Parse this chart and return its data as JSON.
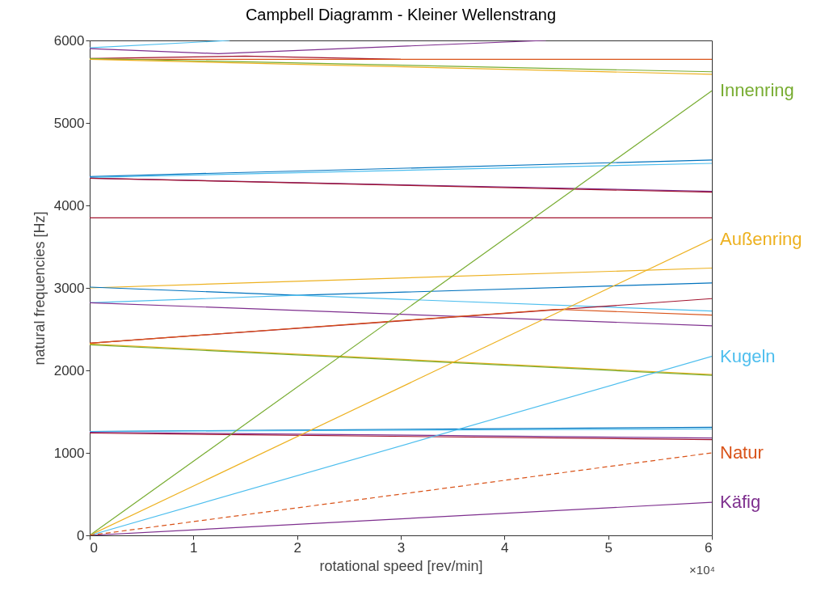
{
  "chart_data": {
    "type": "line",
    "title": "Campbell Diagramm - Kleiner Wellenstrang",
    "xlabel": "rotational speed [rev/min]",
    "ylabel": "natural frequencies [Hz]",
    "line_style": "solid",
    "xlim": [
      0,
      6
    ],
    "ylim": [
      0,
      6000
    ],
    "xticks": [
      0,
      1,
      2,
      3,
      4,
      5,
      6
    ],
    "yticks": [
      0,
      1000,
      2000,
      3000,
      4000,
      5000,
      6000
    ],
    "annotations": [
      "×10⁴"
    ],
    "series": [
      {
        "color": "#4dbeee",
        "x": [
          0,
          1.35
        ],
        "values": [
          5910,
          6000
        ]
      },
      {
        "color": "#7e2f8e",
        "x": [
          0,
          1.24,
          4.4
        ],
        "values": [
          5900,
          5840,
          6000
        ]
      },
      {
        "color": "#a2142f",
        "x": [
          0,
          1.5,
          3
        ],
        "values": [
          5780,
          5810,
          5770
        ]
      },
      {
        "color": "#d95319",
        "x": [
          0,
          6
        ],
        "values": [
          5770,
          5770
        ]
      },
      {
        "color": "#77ac30",
        "x": [
          0,
          6
        ],
        "values": [
          5780,
          5620
        ]
      },
      {
        "color": "#edb120",
        "x": [
          0,
          6
        ],
        "values": [
          5770,
          5590
        ]
      },
      {
        "color": "#0072bd",
        "x": [
          0,
          6
        ],
        "values": [
          4350,
          4550
        ]
      },
      {
        "color": "#4dbeee",
        "x": [
          0,
          6
        ],
        "values": [
          4340,
          4510
        ]
      },
      {
        "color": "#7e2f8e",
        "x": [
          0,
          6
        ],
        "values": [
          4330,
          4170
        ]
      },
      {
        "color": "#a2142f",
        "x": [
          0,
          6
        ],
        "values": [
          4330,
          4160
        ]
      },
      {
        "color": "#a2142f",
        "x": [
          0,
          6
        ],
        "values": [
          3850,
          3850
        ]
      },
      {
        "color": "#edb120",
        "x": [
          0,
          6
        ],
        "values": [
          3000,
          3240
        ]
      },
      {
        "color": "#0072bd",
        "x": [
          0,
          2,
          6
        ],
        "values": [
          3010,
          2910,
          3060
        ]
      },
      {
        "color": "#4dbeee",
        "x": [
          0,
          2,
          6
        ],
        "values": [
          2820,
          2910,
          2720
        ]
      },
      {
        "color": "#7e2f8e",
        "x": [
          0,
          6
        ],
        "values": [
          2820,
          2540
        ]
      },
      {
        "color": "#a2142f",
        "x": [
          0,
          6
        ],
        "values": [
          2330,
          2870
        ]
      },
      {
        "color": "#d95319",
        "x": [
          0,
          4.5,
          6
        ],
        "values": [
          2330,
          2740,
          2670
        ]
      },
      {
        "color": "#edb120",
        "x": [
          0,
          6
        ],
        "values": [
          2320,
          1950
        ]
      },
      {
        "color": "#77ac30",
        "x": [
          0,
          6
        ],
        "values": [
          2310,
          1940
        ]
      },
      {
        "color": "#0072bd",
        "x": [
          0,
          6
        ],
        "values": [
          1260,
          1310
        ]
      },
      {
        "color": "#4dbeee",
        "x": [
          0,
          6
        ],
        "values": [
          1260,
          1290
        ]
      },
      {
        "color": "#7e2f8e",
        "x": [
          0,
          6
        ],
        "values": [
          1250,
          1180
        ]
      },
      {
        "color": "#a2142f",
        "x": [
          0,
          6
        ],
        "values": [
          1240,
          1160
        ]
      },
      {
        "name": "Innenring",
        "color": "#77ac30",
        "x": [
          0,
          6
        ],
        "values": [
          0,
          5390
        ]
      },
      {
        "name": "Außenring",
        "color": "#edb120",
        "x": [
          0,
          6
        ],
        "values": [
          0,
          3590
        ]
      },
      {
        "name": "Kugeln",
        "color": "#4dbeee",
        "x": [
          0,
          6
        ],
        "values": [
          0,
          2170
        ]
      },
      {
        "name": "Natur",
        "color": "#d95319",
        "line_style": "dashed",
        "x": [
          0,
          6
        ],
        "values": [
          0,
          1000
        ]
      },
      {
        "name": "Käfig",
        "color": "#7e2f8e",
        "x": [
          0,
          6
        ],
        "values": [
          0,
          400
        ]
      }
    ]
  }
}
